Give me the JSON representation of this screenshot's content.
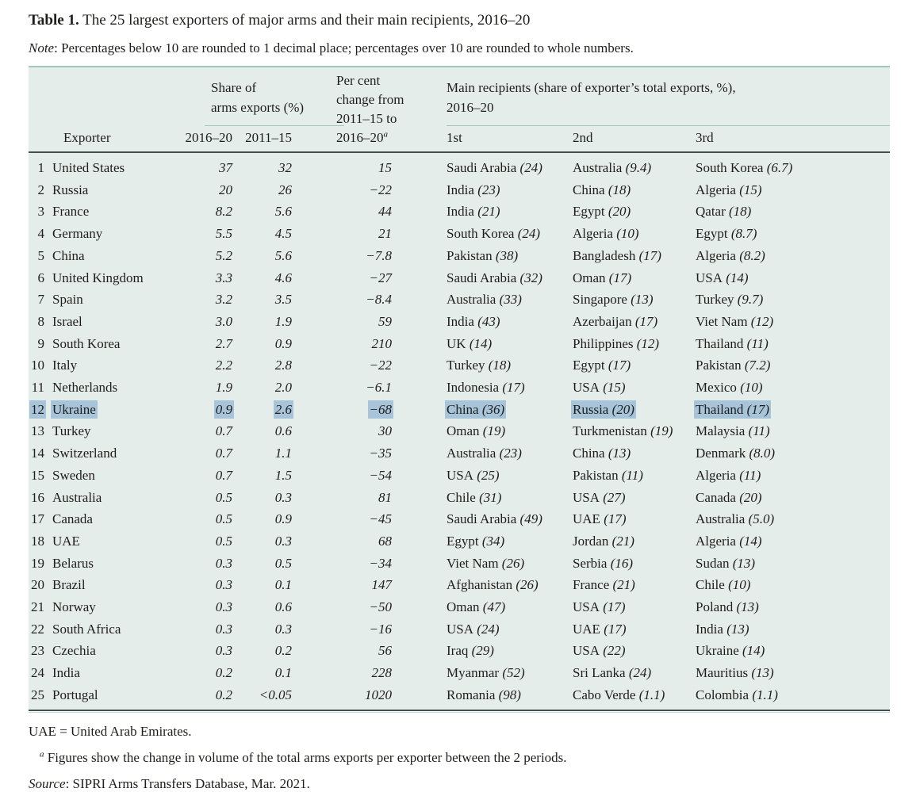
{
  "title": {
    "label": "Table 1.",
    "text": " The 25 largest exporters of major arms and their main recipients, 2016–20"
  },
  "note": {
    "label": "Note",
    "text": ": Percentages below 10 are rounded to 1 decimal place; percentages over 10 are rounded to whole numbers."
  },
  "colors": {
    "table_background": "#e5edeb",
    "rule_light": "#a4c7c1",
    "rule_dark": "#3f5156",
    "highlight": "#a7c4d8"
  },
  "table": {
    "header": {
      "share_line1": "Share of",
      "share_line2": "arms exports (%)",
      "pct_line1": "Per cent",
      "pct_line2": "change from",
      "pct_line3": "2011–15 to",
      "change_label": "2016–20",
      "change_sup": "a",
      "recip_line1": "Main recipients (share of exporter’s total exports, %),",
      "recip_line2": "2016–20",
      "exporter_label": "Exporter",
      "year1_label": "2016–20",
      "year2_label": "2011–15",
      "first_label": "1st",
      "second_label": "2nd",
      "third_label": "3rd"
    },
    "rows": [
      {
        "rank": "1",
        "exporter": "United States",
        "share_2016_20": "37",
        "share_2011_15": "32",
        "change": "15",
        "highlight": false,
        "recipients": [
          {
            "name": "Saudi Arabia",
            "share": "24"
          },
          {
            "name": "Australia",
            "share": "9.4"
          },
          {
            "name": "South Korea",
            "share": "6.7"
          }
        ]
      },
      {
        "rank": "2",
        "exporter": "Russia",
        "share_2016_20": "20",
        "share_2011_15": "26",
        "change": "−22",
        "highlight": false,
        "recipients": [
          {
            "name": "India",
            "share": "23"
          },
          {
            "name": "China",
            "share": "18"
          },
          {
            "name": "Algeria",
            "share": "15"
          }
        ]
      },
      {
        "rank": "3",
        "exporter": "France",
        "share_2016_20": "8.2",
        "share_2011_15": "5.6",
        "change": "44",
        "highlight": false,
        "recipients": [
          {
            "name": "India",
            "share": "21"
          },
          {
            "name": "Egypt",
            "share": "20"
          },
          {
            "name": "Qatar",
            "share": "18"
          }
        ]
      },
      {
        "rank": "4",
        "exporter": "Germany",
        "share_2016_20": "5.5",
        "share_2011_15": "4.5",
        "change": "21",
        "highlight": false,
        "recipients": [
          {
            "name": "South Korea",
            "share": "24"
          },
          {
            "name": "Algeria",
            "share": "10"
          },
          {
            "name": "Egypt",
            "share": "8.7"
          }
        ]
      },
      {
        "rank": "5",
        "exporter": "China",
        "share_2016_20": "5.2",
        "share_2011_15": "5.6",
        "change": "−7.8",
        "highlight": false,
        "recipients": [
          {
            "name": "Pakistan",
            "share": "38"
          },
          {
            "name": "Bangladesh",
            "share": "17"
          },
          {
            "name": "Algeria",
            "share": "8.2"
          }
        ]
      },
      {
        "rank": "6",
        "exporter": "United Kingdom",
        "share_2016_20": "3.3",
        "share_2011_15": "4.6",
        "change": "−27",
        "highlight": false,
        "recipients": [
          {
            "name": "Saudi Arabia",
            "share": "32"
          },
          {
            "name": "Oman",
            "share": "17"
          },
          {
            "name": "USA",
            "share": "14"
          }
        ]
      },
      {
        "rank": "7",
        "exporter": "Spain",
        "share_2016_20": "3.2",
        "share_2011_15": "3.5",
        "change": "−8.4",
        "highlight": false,
        "recipients": [
          {
            "name": "Australia",
            "share": "33"
          },
          {
            "name": "Singapore",
            "share": "13"
          },
          {
            "name": "Turkey",
            "share": "9.7"
          }
        ]
      },
      {
        "rank": "8",
        "exporter": "Israel",
        "share_2016_20": "3.0",
        "share_2011_15": "1.9",
        "change": "59",
        "highlight": false,
        "recipients": [
          {
            "name": "India",
            "share": "43"
          },
          {
            "name": "Azerbaijan",
            "share": "17"
          },
          {
            "name": "Viet Nam",
            "share": "12"
          }
        ]
      },
      {
        "rank": "9",
        "exporter": "South Korea",
        "share_2016_20": "2.7",
        "share_2011_15": "0.9",
        "change": "210",
        "highlight": false,
        "recipients": [
          {
            "name": "UK",
            "share": "14"
          },
          {
            "name": "Philippines",
            "share": "12"
          },
          {
            "name": "Thailand",
            "share": "11"
          }
        ]
      },
      {
        "rank": "10",
        "exporter": "Italy",
        "share_2016_20": "2.2",
        "share_2011_15": "2.8",
        "change": "−22",
        "highlight": false,
        "recipients": [
          {
            "name": "Turkey",
            "share": "18"
          },
          {
            "name": "Egypt",
            "share": "17"
          },
          {
            "name": "Pakistan",
            "share": "7.2"
          }
        ]
      },
      {
        "rank": "11",
        "exporter": "Netherlands",
        "share_2016_20": "1.9",
        "share_2011_15": "2.0",
        "change": "−6.1",
        "highlight": false,
        "recipients": [
          {
            "name": "Indonesia",
            "share": "17"
          },
          {
            "name": "USA",
            "share": "15"
          },
          {
            "name": "Mexico",
            "share": "10"
          }
        ]
      },
      {
        "rank": "12",
        "exporter": "Ukraine",
        "share_2016_20": "0.9",
        "share_2011_15": "2.6",
        "change": "−68",
        "highlight": true,
        "recipients": [
          {
            "name": "China",
            "share": "36"
          },
          {
            "name": "Russia",
            "share": "20"
          },
          {
            "name": "Thailand",
            "share": "17"
          }
        ]
      },
      {
        "rank": "13",
        "exporter": "Turkey",
        "share_2016_20": "0.7",
        "share_2011_15": "0.6",
        "change": "30",
        "highlight": false,
        "recipients": [
          {
            "name": "Oman",
            "share": "19"
          },
          {
            "name": "Turkmenistan",
            "share": "19"
          },
          {
            "name": "Malaysia",
            "share": "11"
          }
        ]
      },
      {
        "rank": "14",
        "exporter": "Switzerland",
        "share_2016_20": "0.7",
        "share_2011_15": "1.1",
        "change": "−35",
        "highlight": false,
        "recipients": [
          {
            "name": "Australia",
            "share": "23"
          },
          {
            "name": "China",
            "share": "13"
          },
          {
            "name": "Denmark",
            "share": "8.0"
          }
        ]
      },
      {
        "rank": "15",
        "exporter": "Sweden",
        "share_2016_20": "0.7",
        "share_2011_15": "1.5",
        "change": "−54",
        "highlight": false,
        "recipients": [
          {
            "name": "USA",
            "share": "25"
          },
          {
            "name": "Pakistan",
            "share": "11"
          },
          {
            "name": "Algeria",
            "share": "11"
          }
        ]
      },
      {
        "rank": "16",
        "exporter": "Australia",
        "share_2016_20": "0.5",
        "share_2011_15": "0.3",
        "change": "81",
        "highlight": false,
        "recipients": [
          {
            "name": "Chile",
            "share": "31"
          },
          {
            "name": "USA",
            "share": "27"
          },
          {
            "name": "Canada",
            "share": "20"
          }
        ]
      },
      {
        "rank": "17",
        "exporter": "Canada",
        "share_2016_20": "0.5",
        "share_2011_15": "0.9",
        "change": "−45",
        "highlight": false,
        "recipients": [
          {
            "name": "Saudi Arabia",
            "share": "49"
          },
          {
            "name": "UAE",
            "share": "17"
          },
          {
            "name": "Australia",
            "share": "5.0"
          }
        ]
      },
      {
        "rank": "18",
        "exporter": "UAE",
        "share_2016_20": "0.5",
        "share_2011_15": "0.3",
        "change": "68",
        "highlight": false,
        "recipients": [
          {
            "name": "Egypt",
            "share": "34"
          },
          {
            "name": "Jordan",
            "share": "21"
          },
          {
            "name": "Algeria",
            "share": "14"
          }
        ]
      },
      {
        "rank": "19",
        "exporter": "Belarus",
        "share_2016_20": "0.3",
        "share_2011_15": "0.5",
        "change": "−34",
        "highlight": false,
        "recipients": [
          {
            "name": "Viet Nam",
            "share": "26"
          },
          {
            "name": "Serbia",
            "share": "16"
          },
          {
            "name": "Sudan",
            "share": "13"
          }
        ]
      },
      {
        "rank": "20",
        "exporter": "Brazil",
        "share_2016_20": "0.3",
        "share_2011_15": "0.1",
        "change": "147",
        "highlight": false,
        "recipients": [
          {
            "name": "Afghanistan",
            "share": "26"
          },
          {
            "name": "France",
            "share": "21"
          },
          {
            "name": "Chile",
            "share": "10"
          }
        ]
      },
      {
        "rank": "21",
        "exporter": "Norway",
        "share_2016_20": "0.3",
        "share_2011_15": "0.6",
        "change": "−50",
        "highlight": false,
        "recipients": [
          {
            "name": "Oman",
            "share": "47"
          },
          {
            "name": "USA",
            "share": "17"
          },
          {
            "name": "Poland",
            "share": "13"
          }
        ]
      },
      {
        "rank": "22",
        "exporter": "South Africa",
        "share_2016_20": "0.3",
        "share_2011_15": "0.3",
        "change": "−16",
        "highlight": false,
        "recipients": [
          {
            "name": "USA",
            "share": "24"
          },
          {
            "name": "UAE",
            "share": "17"
          },
          {
            "name": "India",
            "share": "13"
          }
        ]
      },
      {
        "rank": "23",
        "exporter": "Czechia",
        "share_2016_20": "0.3",
        "share_2011_15": "0.2",
        "change": "56",
        "highlight": false,
        "recipients": [
          {
            "name": "Iraq",
            "share": "29"
          },
          {
            "name": "USA",
            "share": "22"
          },
          {
            "name": "Ukraine",
            "share": "14"
          }
        ]
      },
      {
        "rank": "24",
        "exporter": "India",
        "share_2016_20": "0.2",
        "share_2011_15": "0.1",
        "change": "228",
        "highlight": false,
        "recipients": [
          {
            "name": "Myanmar",
            "share": "52"
          },
          {
            "name": "Sri Lanka",
            "share": "24"
          },
          {
            "name": "Mauritius",
            "share": "13"
          }
        ]
      },
      {
        "rank": "25",
        "exporter": "Portugal",
        "share_2016_20": "0.2",
        "share_2011_15": "<0.05",
        "change": "1020",
        "highlight": false,
        "recipients": [
          {
            "name": "Romania",
            "share": "98"
          },
          {
            "name": "Cabo Verde",
            "share": "1.1"
          },
          {
            "name": "Colombia",
            "share": "1.1"
          }
        ]
      }
    ]
  },
  "footnotes": {
    "uae": "UAE = United Arab Emirates.",
    "a_sup": "a",
    "a_text": " Figures show the change in volume of the total arms exports per exporter between the 2 periods.",
    "source_label": "Source",
    "source_text": ": SIPRI Arms Transfers Database, Mar. 2021."
  }
}
